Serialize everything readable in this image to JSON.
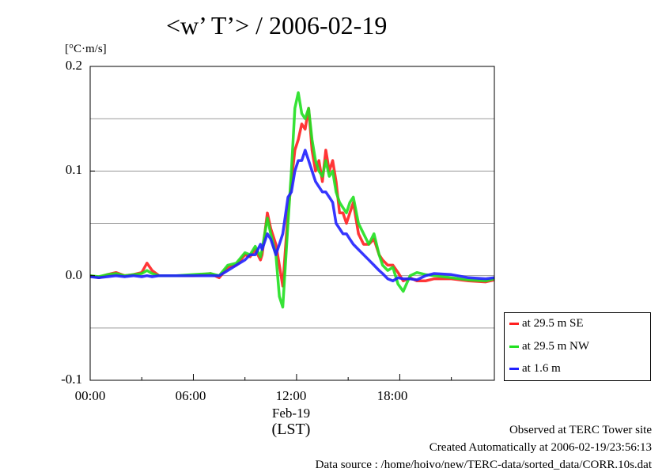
{
  "chart_data": {
    "type": "line",
    "title": "<w’ T’> / 2006-02-19",
    "unit_label": "[°C·m/s]",
    "ylim": [
      -0.1,
      0.2
    ],
    "y_ticks": [
      "0.2",
      "0.1",
      "0.0",
      "-0.1"
    ],
    "y_tick_values": [
      0.2,
      0.1,
      0.0,
      -0.1
    ],
    "xlim": [
      0,
      23.5
    ],
    "x_ticks": [
      "00:00",
      "06:00",
      "12:00",
      "18:00"
    ],
    "x_tick_values": [
      0,
      6,
      12,
      18
    ],
    "date_label": "Feb-19",
    "xlabel": "(LST)",
    "grid": true,
    "legend_position": "right, below plot top",
    "series": [
      {
        "name": "at 29.5 m SE",
        "color": "#ff2020",
        "x": [
          0,
          0.5,
          1,
          1.5,
          2,
          2.5,
          3,
          3.3,
          3.6,
          4,
          5,
          6,
          7,
          7.5,
          8,
          8.5,
          9,
          9.3,
          9.6,
          9.9,
          10,
          10.3,
          10.5,
          10.8,
          11,
          11.2,
          11.5,
          11.7,
          11.9,
          12.1,
          12.3,
          12.5,
          12.7,
          12.9,
          13.1,
          13.3,
          13.5,
          13.7,
          13.9,
          14.1,
          14.3,
          14.5,
          14.7,
          14.9,
          15.1,
          15.3,
          15.6,
          15.9,
          16.2,
          16.5,
          16.8,
          17.0,
          17.3,
          17.6,
          17.9,
          18.2,
          18.6,
          19,
          19.5,
          20,
          21,
          22,
          23,
          23.5
        ],
        "y": [
          0,
          -0.002,
          0.001,
          0.003,
          0,
          0.001,
          0.003,
          0.012,
          0.005,
          0,
          0,
          0,
          0.002,
          -0.002,
          0.008,
          0.01,
          0.02,
          0.018,
          0.025,
          0.015,
          0.02,
          0.06,
          0.045,
          0.03,
          0.01,
          -0.01,
          0.06,
          0.09,
          0.12,
          0.13,
          0.145,
          0.14,
          0.16,
          0.12,
          0.1,
          0.11,
          0.09,
          0.12,
          0.1,
          0.11,
          0.09,
          0.06,
          0.06,
          0.05,
          0.06,
          0.07,
          0.04,
          0.03,
          0.03,
          0.035,
          0.02,
          0.015,
          0.01,
          0.01,
          0.003,
          -0.005,
          -0.002,
          -0.005,
          -0.005,
          -0.003,
          -0.003,
          -0.005,
          -0.006,
          -0.004
        ]
      },
      {
        "name": "at 29.5 m NW",
        "color": "#20e020",
        "x": [
          0,
          0.5,
          1,
          1.5,
          2,
          2.5,
          3,
          3.3,
          3.6,
          4,
          5,
          6,
          7,
          7.5,
          8,
          8.5,
          9,
          9.3,
          9.6,
          9.9,
          10,
          10.3,
          10.5,
          10.8,
          11,
          11.2,
          11.5,
          11.7,
          11.9,
          12.1,
          12.3,
          12.5,
          12.7,
          12.9,
          13.1,
          13.3,
          13.5,
          13.7,
          13.9,
          14.1,
          14.3,
          14.5,
          14.7,
          14.9,
          15.1,
          15.3,
          15.6,
          15.9,
          16.2,
          16.5,
          16.8,
          17.0,
          17.3,
          17.6,
          17.9,
          18.2,
          18.6,
          19,
          19.5,
          20,
          21,
          22,
          23,
          23.5
        ],
        "y": [
          0,
          -0.001,
          0.001,
          0.002,
          0,
          0.001,
          0.002,
          0.005,
          0.002,
          0,
          0,
          0.001,
          0.002,
          0,
          0.01,
          0.012,
          0.022,
          0.02,
          0.028,
          0.018,
          0.025,
          0.055,
          0.04,
          0.02,
          -0.02,
          -0.03,
          0.05,
          0.1,
          0.16,
          0.175,
          0.155,
          0.15,
          0.16,
          0.13,
          0.11,
          0.1,
          0.095,
          0.11,
          0.095,
          0.1,
          0.08,
          0.07,
          0.065,
          0.06,
          0.07,
          0.075,
          0.05,
          0.04,
          0.03,
          0.04,
          0.02,
          0.01,
          0.005,
          0.008,
          -0.008,
          -0.015,
          0,
          0.003,
          0.001,
          0,
          -0.002,
          -0.004,
          -0.005,
          -0.003
        ]
      },
      {
        "name": "at 1.6 m",
        "color": "#2020ff",
        "x": [
          0,
          0.5,
          1,
          1.5,
          2,
          2.5,
          3,
          3.3,
          3.6,
          4,
          5,
          6,
          7,
          7.5,
          8,
          8.5,
          9,
          9.3,
          9.6,
          9.9,
          10,
          10.3,
          10.5,
          10.8,
          11,
          11.2,
          11.5,
          11.7,
          11.9,
          12.1,
          12.3,
          12.5,
          12.7,
          12.9,
          13.1,
          13.3,
          13.5,
          13.7,
          13.9,
          14.1,
          14.3,
          14.5,
          14.7,
          14.9,
          15.1,
          15.3,
          15.6,
          15.9,
          16.2,
          16.5,
          16.8,
          17.0,
          17.3,
          17.6,
          17.9,
          18.2,
          18.6,
          19,
          19.5,
          20,
          21,
          22,
          23,
          23.5
        ],
        "y": [
          -0.001,
          -0.002,
          -0.001,
          0,
          -0.001,
          0,
          -0.001,
          0,
          -0.001,
          0,
          0,
          0,
          0,
          0,
          0.005,
          0.01,
          0.015,
          0.02,
          0.02,
          0.03,
          0.025,
          0.04,
          0.035,
          0.02,
          0.03,
          0.04,
          0.075,
          0.08,
          0.1,
          0.11,
          0.11,
          0.12,
          0.11,
          0.1,
          0.09,
          0.085,
          0.08,
          0.08,
          0.075,
          0.07,
          0.05,
          0.045,
          0.04,
          0.04,
          0.035,
          0.03,
          0.025,
          0.02,
          0.015,
          0.01,
          0.005,
          0.002,
          -0.003,
          -0.005,
          -0.002,
          -0.003,
          -0.003,
          -0.004,
          0,
          0.002,
          0.001,
          -0.002,
          -0.003,
          -0.002
        ]
      }
    ]
  },
  "footer": {
    "line1": "Observed at TERC Tower site",
    "line2": "Created Automatically at 2006-02-19/23:56:13",
    "line3": "Data source : /home/hoivo/new/TERC-data/sorted_data/CORR.10s.dat"
  }
}
